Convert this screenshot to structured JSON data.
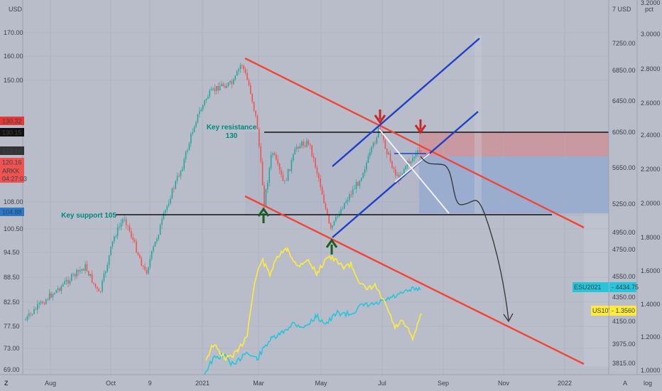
{
  "chart_data": {
    "type": "line",
    "symbol": "ARKK",
    "top_labels": {
      "left_currency": "USD",
      "right_currency": "7 USD",
      "pct_unit": "pct"
    },
    "x_ticks": [
      "Aug",
      "Oct",
      "9",
      "2021",
      "Mar",
      "May",
      "Jul",
      "Sep",
      "Nov",
      "2022"
    ],
    "y_left": {
      "ticks": [
        170.0,
        160.0,
        150.0,
        108.0,
        100.5,
        94.5,
        88.5,
        82.5,
        77.5,
        73.0,
        69.0
      ]
    },
    "y_mid": {
      "ticks": [
        7250.0,
        6850.0,
        6450.0,
        6050.0,
        5650.0,
        5250.0,
        4950.0,
        4750.0,
        4550.0,
        4350.0,
        4150.0,
        3975.0,
        3815.0
      ]
    },
    "y_pct": {
      "ticks": [
        "3.2000",
        "3.0000",
        "2.8000",
        "2.6000",
        "2.4000",
        "2.2000",
        "2.0000",
        "1.8000",
        "1.6000",
        "1.4000",
        "1.2000",
        "1.0000"
      ]
    },
    "price_tags": [
      {
        "label": "130.32",
        "color": "#e53935"
      },
      {
        "label": "130.15",
        "color": "#111111"
      },
      {
        "label": "122.16",
        "color": "#333333"
      },
      {
        "label": "120.16",
        "color": "#ef5350"
      },
      {
        "label": "ARKK",
        "color": "#ef5350"
      },
      {
        "label": "04:27:03",
        "color": "#ef5350"
      },
      {
        "label": "104.88",
        "color": "#2979c7"
      }
    ],
    "series_tags": [
      {
        "name": "ESU2021",
        "value": "4434.75",
        "color": "#26c6da"
      },
      {
        "name": "US10Y",
        "value": "1.3560",
        "color": "#ffeb3b"
      }
    ],
    "annotations": {
      "resistance_line1": "Key resistance",
      "resistance_line2": "130",
      "support": "Key support 105"
    },
    "bottom_left_letter": "Z",
    "bottom_right_a": "A",
    "bottom_right_log": "log",
    "colors": {
      "background": "#b9bdca",
      "up": "#26a69a",
      "down": "#ef5350",
      "channel_red": "#f44336",
      "channel_blue": "#1e40c8",
      "sp500": "#26c6da",
      "us10y": "#ffeb3b"
    }
  }
}
